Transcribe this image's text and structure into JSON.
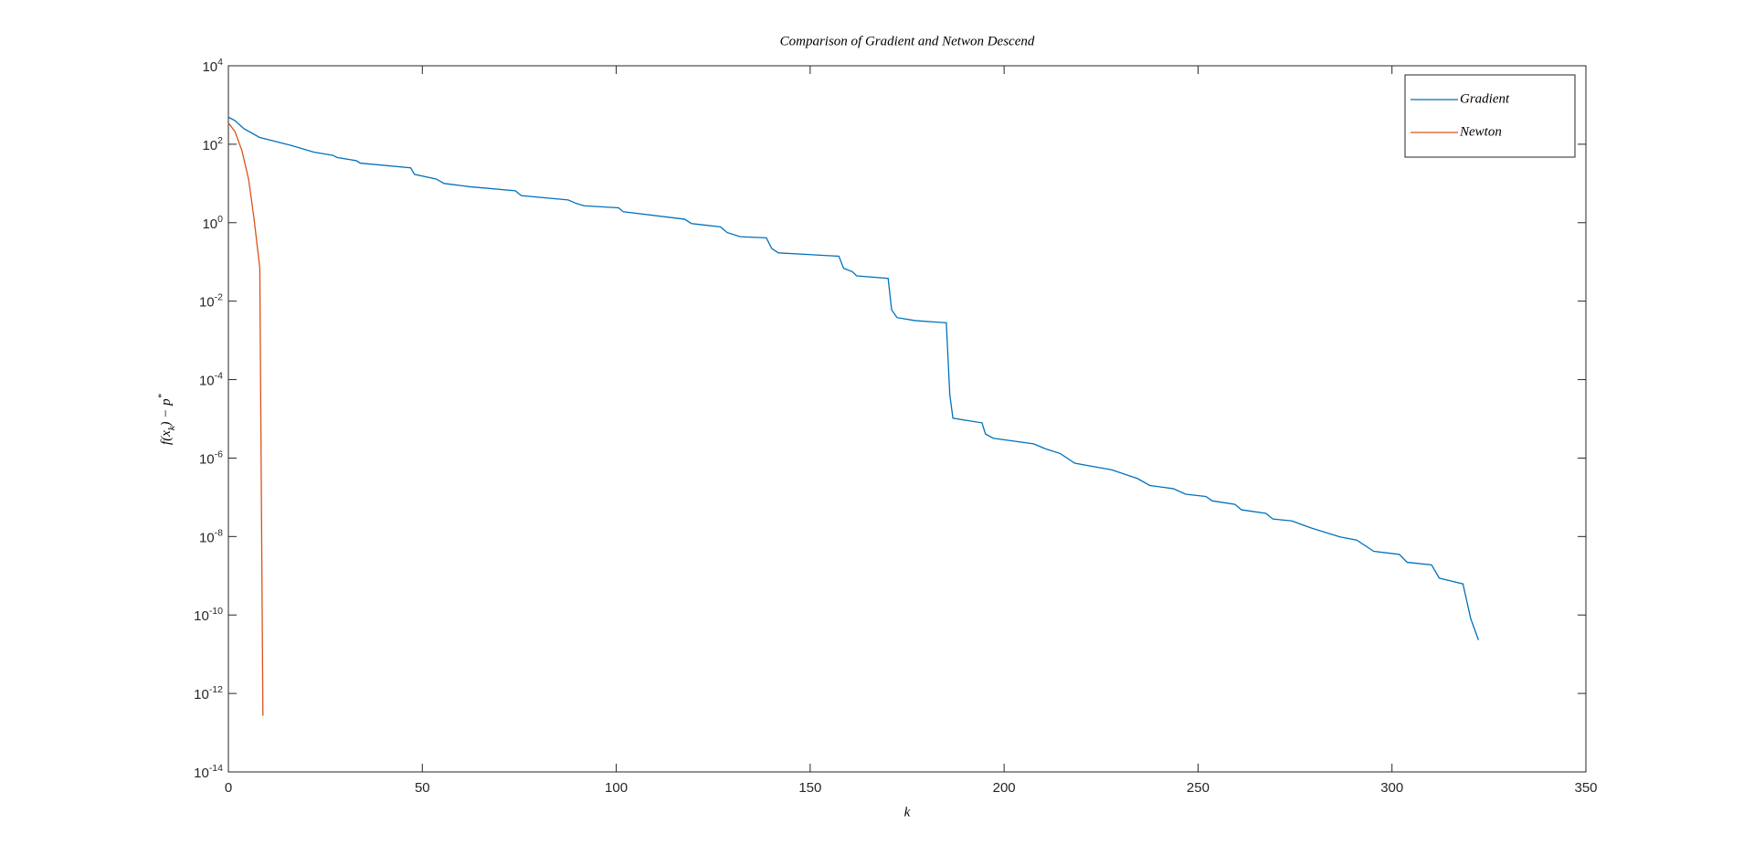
{
  "chart_data": {
    "type": "line",
    "title": "Comparison of Gradient and Netwon Descend",
    "xlabel": "k",
    "ylabel": "f(x_k) − p^*",
    "yscale": "log",
    "legend": "northeast",
    "grid": false,
    "xlim": [
      0,
      350
    ],
    "xticks": [
      0,
      50,
      100,
      150,
      200,
      250,
      300,
      350
    ],
    "ylim": [
      1e-14,
      10000
    ],
    "yticks": [
      {
        "value": 1e-14,
        "label": "10^{-14}"
      },
      {
        "value": 1e-12,
        "label": "10^{-12}"
      },
      {
        "value": 1e-10,
        "label": "10^{-10}"
      },
      {
        "value": 1e-08,
        "label": "10^{-8}"
      },
      {
        "value": 1e-06,
        "label": "10^{-6}"
      },
      {
        "value": 0.0001,
        "label": "10^{-4}"
      },
      {
        "value": 0.01,
        "label": "10^{-2}"
      },
      {
        "value": 1,
        "label": "10^{0}"
      },
      {
        "value": 100,
        "label": "10^{2}"
      },
      {
        "value": 10000,
        "label": "10^{4}"
      }
    ],
    "series": [
      {
        "name": "Gradient",
        "color": "#0072BD",
        "x": [
          0,
          1.7,
          4,
          8,
          16,
          22,
          27,
          28,
          33,
          34,
          47,
          48,
          53.6,
          55.6,
          62,
          74,
          75.5,
          87.6,
          89.7,
          91.7,
          100.6,
          101.8,
          117.6,
          119.4,
          126.9,
          128.6,
          132,
          138.7,
          140.1,
          141.8,
          157.4,
          158.6,
          160.9,
          162,
          170.1,
          171,
          172.4,
          177,
          185.1,
          186,
          186.8,
          194.3,
          195.2,
          197.2,
          207.6,
          210.8,
          214.5,
          218.2,
          227.8,
          234.4,
          237.6,
          243.6,
          246.8,
          252,
          253.7,
          259.5,
          261.2,
          267.5,
          269.3,
          274.2,
          279.1,
          282,
          286.6,
          290.9,
          295.3,
          301.9,
          303.9,
          310.2,
          312.2,
          318.3,
          320.3,
          322.3
        ],
        "values": [
          490,
          400,
          250,
          150,
          94,
          63,
          52,
          46,
          38,
          33,
          25,
          17,
          13,
          10,
          8.3,
          6.5,
          4.9,
          3.8,
          3.1,
          2.7,
          2.4,
          1.9,
          1.23,
          0.95,
          0.78,
          0.56,
          0.44,
          0.41,
          0.22,
          0.17,
          0.14,
          0.069,
          0.056,
          0.044,
          0.038,
          0.006,
          0.0038,
          0.0032,
          0.0028,
          4.1e-05,
          1.04e-05,
          7.9e-06,
          4.1e-06,
          3.2e-06,
          2.3e-06,
          1.7e-06,
          1.3e-06,
          7.4e-07,
          5e-07,
          3e-07,
          2e-07,
          1.66e-07,
          1.2e-07,
          1.05e-07,
          8.1e-08,
          6.6e-08,
          4.8e-08,
          3.9e-08,
          2.8e-08,
          2.5e-08,
          1.66e-08,
          1.35e-08,
          9.8e-09,
          8.1e-09,
          4.2e-09,
          3.5e-09,
          2.2e-09,
          1.9e-09,
          8.7e-10,
          6.2e-10,
          8.1e-11,
          2.3e-11
        ]
      },
      {
        "name": "Newton",
        "color": "#D95319",
        "x": [
          0,
          1.7,
          3.5,
          5.2,
          6.6,
          8.1,
          8.9
        ],
        "values": [
          350,
          210,
          68,
          13,
          1.3,
          0.07,
          2.7e-13
        ]
      }
    ]
  }
}
